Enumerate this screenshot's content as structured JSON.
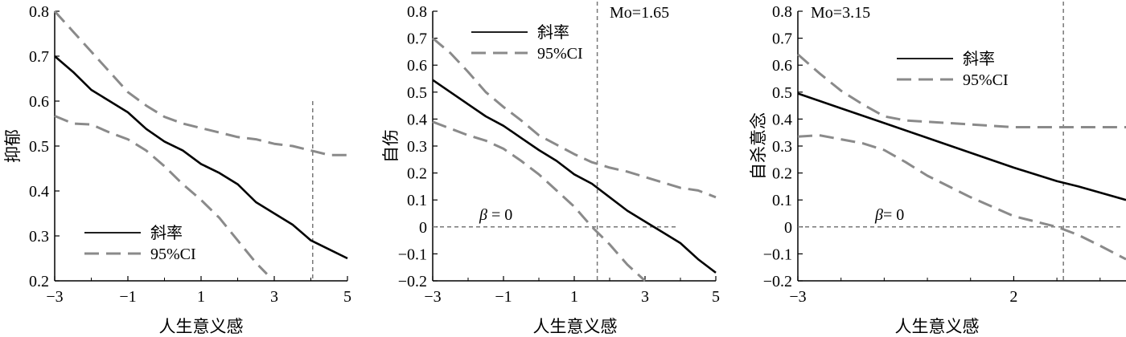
{
  "chart_data": [
    {
      "type": "line",
      "xlabel": "人生意义感",
      "ylabel": "抑郁",
      "xlim": [
        -3,
        5
      ],
      "ylim": [
        0.2,
        0.8
      ],
      "xticks": [
        -3,
        -1,
        1,
        3,
        5
      ],
      "xtick_labels": [
        "−3",
        "−1",
        "1",
        "3",
        "5"
      ],
      "yticks": [
        0.2,
        0.3,
        0.4,
        0.5,
        0.6,
        0.7,
        0.8
      ],
      "ytick_labels": [
        "0.2",
        "0.3",
        "0.4",
        "0.5",
        "0.6",
        "0.7",
        "0.8"
      ],
      "vline": 4.05,
      "hline": null,
      "annotations": [],
      "legend": {
        "placement": "bottom-left",
        "entries": [
          {
            "label": "斜率",
            "style": "solid"
          },
          {
            "label": "95%CI",
            "style": "dashed"
          }
        ]
      },
      "series": [
        {
          "name": "斜率",
          "style": "solid",
          "x": [
            -3,
            -2.5,
            -2,
            -1.5,
            -1,
            -0.5,
            0,
            0.5,
            1,
            1.5,
            2,
            2.5,
            3,
            3.5,
            4,
            4.5,
            5
          ],
          "y": [
            0.7,
            0.665,
            0.625,
            0.6,
            0.575,
            0.538,
            0.51,
            0.49,
            0.46,
            0.44,
            0.415,
            0.375,
            0.35,
            0.325,
            0.29,
            0.27,
            0.25
          ]
        },
        {
          "name": "95%CI",
          "style": "dashed",
          "x": [
            -3,
            -2.5,
            -2,
            -1.5,
            -1,
            -0.5,
            0,
            0.5,
            1,
            1.5,
            2,
            2.5,
            3,
            3.5,
            4,
            4.5,
            5
          ],
          "y": [
            0.8,
            0.755,
            0.71,
            0.665,
            0.62,
            0.59,
            0.565,
            0.55,
            0.54,
            0.53,
            0.52,
            0.515,
            0.505,
            0.5,
            0.49,
            0.48,
            0.48
          ]
        },
        {
          "name": "95%CI",
          "style": "dashed",
          "x": [
            -3,
            -2.5,
            -2,
            -1.5,
            -1,
            -0.5,
            0,
            0.5,
            1,
            1.5,
            2,
            2.5,
            2.8
          ],
          "y": [
            0.567,
            0.55,
            0.548,
            0.53,
            0.515,
            0.49,
            0.455,
            0.415,
            0.38,
            0.34,
            0.29,
            0.24,
            0.215
          ]
        }
      ]
    },
    {
      "type": "line",
      "xlabel": "人生意义感",
      "ylabel": "自伤",
      "xlim": [
        -3,
        5
      ],
      "ylim": [
        -0.2,
        0.8
      ],
      "xticks": [
        -3,
        -1,
        1,
        3,
        5
      ],
      "xtick_labels": [
        "−3",
        "−1",
        "1",
        "3",
        "5"
      ],
      "yticks": [
        -0.2,
        -0.1,
        0,
        0.1,
        0.2,
        0.3,
        0.4,
        0.5,
        0.6,
        0.7,
        0.8
      ],
      "ytick_labels": [
        "−0.2",
        "−0.1",
        "0",
        "0.1",
        "0.2",
        "0.3",
        "0.4",
        "0.5",
        "0.6",
        "0.7",
        "0.8"
      ],
      "vline": 1.65,
      "hline": {
        "y": 0,
        "x_end": 3.9
      },
      "annotations": [
        {
          "text": "Mo=1.65",
          "x": 1.75,
          "y": 0.78
        },
        {
          "text": "β = 0",
          "x": -2,
          "y": 0.03
        }
      ],
      "legend": {
        "placement": "top-left",
        "entries": [
          {
            "label": "斜率",
            "style": "solid"
          },
          {
            "label": "95%CI",
            "style": "dashed"
          }
        ]
      },
      "series": [
        {
          "name": "斜率",
          "style": "solid",
          "x": [
            -3,
            -2.5,
            -2,
            -1.5,
            -1,
            -0.5,
            0,
            0.5,
            1,
            1.5,
            2,
            2.5,
            3,
            3.5,
            4,
            4.5,
            5
          ],
          "y": [
            0.545,
            0.5,
            0.455,
            0.41,
            0.375,
            0.33,
            0.285,
            0.245,
            0.195,
            0.16,
            0.11,
            0.06,
            0.02,
            -0.02,
            -0.06,
            -0.12,
            -0.17
          ]
        },
        {
          "name": "95%CI",
          "style": "dashed",
          "x": [
            -3,
            -2.5,
            -2,
            -1.5,
            -1,
            -0.5,
            0,
            0.5,
            1,
            1.5,
            2,
            2.5,
            3,
            3.5,
            4,
            4.5,
            5
          ],
          "y": [
            0.7,
            0.645,
            0.575,
            0.5,
            0.445,
            0.395,
            0.34,
            0.305,
            0.27,
            0.24,
            0.22,
            0.205,
            0.185,
            0.165,
            0.145,
            0.135,
            0.11
          ]
        },
        {
          "name": "95%CI",
          "style": "dashed",
          "x": [
            -3,
            -2.5,
            -2,
            -1.5,
            -1,
            -0.5,
            0,
            0.5,
            1,
            1.5,
            2,
            2.5,
            3
          ],
          "y": [
            0.39,
            0.365,
            0.34,
            0.32,
            0.29,
            0.245,
            0.195,
            0.135,
            0.075,
            0.0,
            -0.065,
            -0.14,
            -0.2
          ]
        }
      ]
    },
    {
      "type": "line",
      "xlabel": "人生意义感",
      "ylabel": "自杀意念",
      "xlim": [
        -3,
        4.6
      ],
      "ylim": [
        -0.2,
        0.8
      ],
      "xticks": [
        -3,
        2
      ],
      "xtick_labels": [
        "−3",
        "2"
      ],
      "yticks": [
        -0.2,
        -0.1,
        0,
        0.1,
        0.2,
        0.3,
        0.4,
        0.5,
        0.6,
        0.7,
        0.8
      ],
      "ytick_labels": [
        "−0.2",
        "−0.1",
        "0",
        "0.1",
        "0.2",
        "0.3",
        "0.4",
        "0.5",
        "0.6",
        "0.7",
        "0.8"
      ],
      "vline": 3.15,
      "hline": {
        "y": 0,
        "x_end": 4.5
      },
      "annotations": [
        {
          "text": "Mo=3.15",
          "x": -2.4,
          "y": 0.78
        },
        {
          "text": "β= 0",
          "x": -1.5,
          "y": 0.03
        }
      ],
      "legend": {
        "placement": "top-center",
        "entries": [
          {
            "label": "斜率",
            "style": "solid"
          },
          {
            "label": "95%CI",
            "style": "dashed"
          }
        ]
      },
      "series": [
        {
          "name": "斜率",
          "style": "solid",
          "x": [
            -3,
            -2,
            -1,
            0,
            1,
            2,
            3,
            3.5,
            4.6
          ],
          "y": [
            0.495,
            0.44,
            0.385,
            0.33,
            0.275,
            0.22,
            0.17,
            0.15,
            0.1
          ]
        },
        {
          "name": "95%CI",
          "style": "dashed",
          "x": [
            -3,
            -2.5,
            -2,
            -1.5,
            -1,
            -0.5,
            0,
            0.5,
            1,
            1.5,
            2,
            2.5,
            3,
            3.5,
            4,
            4.6
          ],
          "y": [
            0.64,
            0.57,
            0.505,
            0.455,
            0.41,
            0.395,
            0.39,
            0.385,
            0.38,
            0.375,
            0.37,
            0.37,
            0.37,
            0.37,
            0.37,
            0.37
          ]
        },
        {
          "name": "95%CI",
          "style": "dashed",
          "x": [
            -3,
            -2.5,
            -2,
            -1.5,
            -1,
            -0.5,
            0,
            0.5,
            1,
            1.5,
            2,
            2.5,
            3,
            3.5,
            4,
            4.6
          ],
          "y": [
            0.335,
            0.34,
            0.325,
            0.31,
            0.285,
            0.24,
            0.19,
            0.15,
            0.11,
            0.075,
            0.04,
            0.02,
            0.0,
            -0.03,
            -0.07,
            -0.12
          ]
        }
      ]
    }
  ]
}
